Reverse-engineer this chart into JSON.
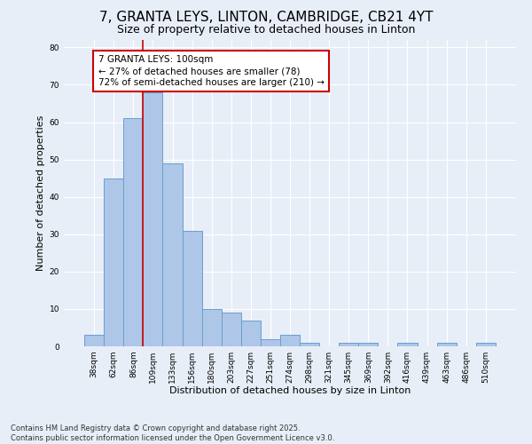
{
  "title1": "7, GRANTA LEYS, LINTON, CAMBRIDGE, CB21 4YT",
  "title2": "Size of property relative to detached houses in Linton",
  "xlabel": "Distribution of detached houses by size in Linton",
  "ylabel": "Number of detached properties",
  "categories": [
    "38sqm",
    "62sqm",
    "86sqm",
    "109sqm",
    "133sqm",
    "156sqm",
    "180sqm",
    "203sqm",
    "227sqm",
    "251sqm",
    "274sqm",
    "298sqm",
    "321sqm",
    "345sqm",
    "369sqm",
    "392sqm",
    "416sqm",
    "439sqm",
    "463sqm",
    "486sqm",
    "510sqm"
  ],
  "values": [
    3,
    45,
    61,
    68,
    49,
    31,
    10,
    9,
    7,
    2,
    3,
    1,
    0,
    1,
    1,
    0,
    1,
    0,
    1,
    0,
    1
  ],
  "bar_color": "#aec6e8",
  "bar_edge_color": "#6a9fcf",
  "highlight_line_color": "#cc0000",
  "annotation_text": "7 GRANTA LEYS: 100sqm\n← 27% of detached houses are smaller (78)\n72% of semi-detached houses are larger (210) →",
  "annotation_box_edge_color": "#cc0000",
  "annotation_box_face_color": "#ffffff",
  "ylim": [
    0,
    82
  ],
  "yticks": [
    0,
    10,
    20,
    30,
    40,
    50,
    60,
    70,
    80
  ],
  "bg_color": "#e8eef8",
  "grid_color": "#ffffff",
  "footer": "Contains HM Land Registry data © Crown copyright and database right 2025.\nContains public sector information licensed under the Open Government Licence v3.0.",
  "title_fontsize": 11,
  "subtitle_fontsize": 9,
  "axis_label_fontsize": 8,
  "tick_fontsize": 6.5,
  "annotation_fontsize": 7.5,
  "footer_fontsize": 6
}
